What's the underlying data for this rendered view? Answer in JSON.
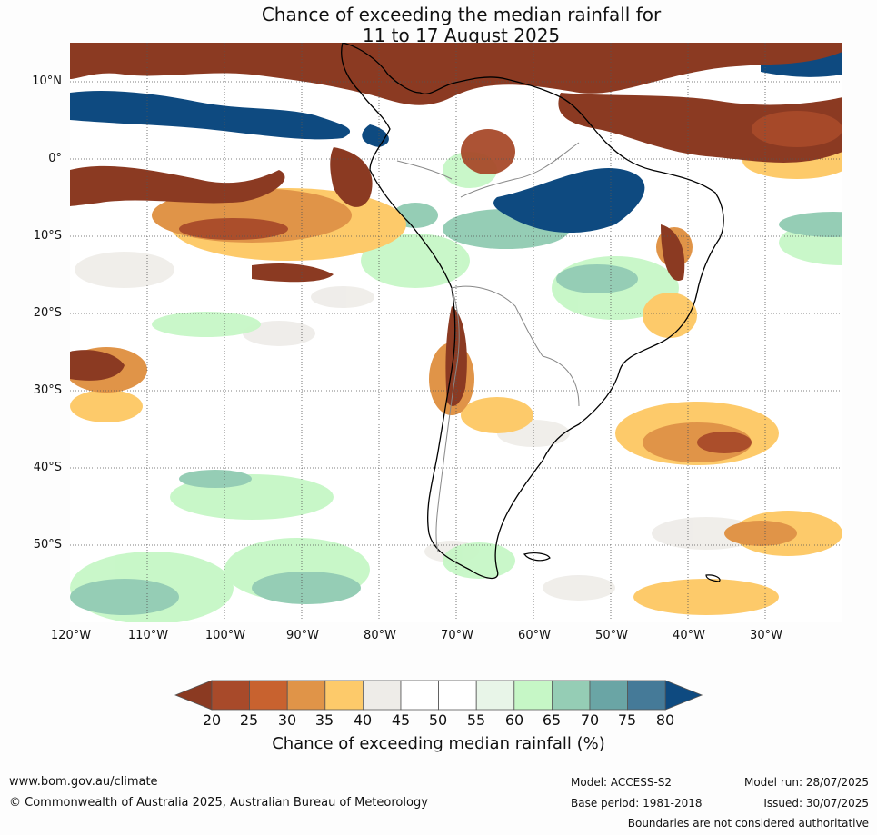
{
  "title": {
    "line1": "Chance of exceeding the median rainfall for",
    "line2": "11 to 17 August 2025"
  },
  "map": {
    "lat_labels": [
      "10°N",
      "0°",
      "10°S",
      "20°S",
      "30°S",
      "40°S",
      "50°S"
    ],
    "lon_labels": [
      "120°W",
      "110°W",
      "100°W",
      "90°W",
      "80°W",
      "70°W",
      "60°W",
      "50°W",
      "40°W",
      "30°W"
    ]
  },
  "legend": {
    "ticks": [
      "20",
      "25",
      "30",
      "35",
      "40",
      "45",
      "50",
      "55",
      "60",
      "65",
      "70",
      "75",
      "80"
    ],
    "label": "Chance of exceeding median rainfall (%)",
    "colors": [
      "#8b3a22",
      "#a84a2a",
      "#c8622f",
      "#e09448",
      "#fdca6a",
      "#eeece8",
      "#ffffff",
      "#ffffff",
      "#e8f5e8",
      "#c6f7c6",
      "#95cdb5",
      "#6aa5a5",
      "#457a98",
      "#0e4a80"
    ]
  },
  "footer": {
    "website": "www.bom.gov.au/climate",
    "copyright": "© Commonwealth of Australia 2025, Australian Bureau of Meteorology",
    "model": "Model: ACCESS-S2",
    "base_period": "Base period: 1981-2018",
    "model_run": "Model run: 28/07/2025",
    "issued": "Issued: 30/07/2025",
    "disclaimer": "Boundaries are not considered authoritative"
  }
}
